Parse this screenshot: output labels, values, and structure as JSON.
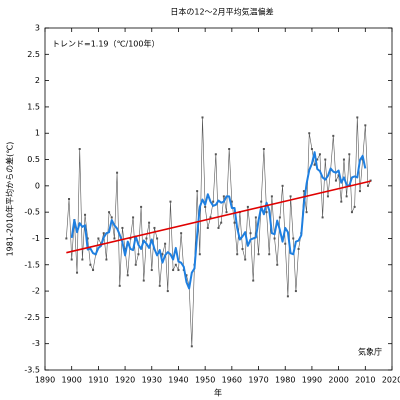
{
  "chart_data": {
    "type": "line",
    "title": "日本の12～2月平均気温偏差",
    "annotation": "トレンド=1.19（℃/100年）",
    "source": "気象庁",
    "xlabel": "年",
    "ylabel": "1981-2010年平均からの差(℃)",
    "xlim": [
      1890,
      2020
    ],
    "xticks": [
      1890,
      1900,
      1910,
      1920,
      1930,
      1940,
      1950,
      1960,
      1970,
      1980,
      1990,
      2000,
      2010,
      2020
    ],
    "ylim": [
      -3.5,
      3
    ],
    "yticks": [
      3,
      2.5,
      2,
      1.5,
      1,
      0.5,
      0,
      -0.5,
      -1,
      -1.5,
      -2,
      -2.5,
      -3,
      -3.5
    ],
    "x": [
      1898,
      1899,
      1900,
      1901,
      1902,
      1903,
      1904,
      1905,
      1906,
      1907,
      1908,
      1909,
      1910,
      1911,
      1912,
      1913,
      1914,
      1915,
      1916,
      1917,
      1918,
      1919,
      1920,
      1921,
      1922,
      1923,
      1924,
      1925,
      1926,
      1927,
      1928,
      1929,
      1930,
      1931,
      1932,
      1933,
      1934,
      1935,
      1936,
      1937,
      1938,
      1939,
      1940,
      1941,
      1942,
      1943,
      1944,
      1945,
      1946,
      1947,
      1948,
      1949,
      1950,
      1951,
      1952,
      1953,
      1954,
      1955,
      1956,
      1957,
      1958,
      1959,
      1960,
      1961,
      1962,
      1963,
      1964,
      1965,
      1966,
      1967,
      1968,
      1969,
      1970,
      1971,
      1972,
      1973,
      1974,
      1975,
      1976,
      1977,
      1978,
      1979,
      1980,
      1981,
      1982,
      1983,
      1984,
      1985,
      1986,
      1987,
      1988,
      1989,
      1990,
      1991,
      1992,
      1993,
      1994,
      1995,
      1996,
      1997,
      1998,
      1999,
      2000,
      2001,
      2002,
      2003,
      2004,
      2005,
      2006,
      2007,
      2008,
      2009,
      2010,
      2011,
      2012
    ],
    "series": [
      {
        "color": "#555555",
        "values": [
          -1.0,
          -0.25,
          -1.4,
          -0.65,
          -1.65,
          0.7,
          -1.4,
          -0.55,
          -1.0,
          -1.5,
          -1.6,
          -1.3,
          -1.0,
          -1.1,
          -0.9,
          -1.4,
          -0.5,
          -0.6,
          -1.0,
          0.25,
          -1.9,
          -0.8,
          -1.2,
          -1.7,
          -1.0,
          -0.6,
          -1.5,
          -1.3,
          -0.4,
          -1.8,
          -1.0,
          -0.7,
          -1.6,
          -0.8,
          -1.0,
          -1.9,
          -1.3,
          -1.1,
          -2.0,
          -0.3,
          -1.6,
          -1.5,
          -1.6,
          -0.9,
          -1.6,
          -1.7,
          -1.9,
          -3.05,
          -1.5,
          -0.1,
          -1.3,
          1.3,
          -0.4,
          -0.8,
          -0.6,
          -0.3,
          0.6,
          -0.8,
          -0.7,
          -0.2,
          -0.5,
          0.7,
          -0.3,
          -0.7,
          -1.3,
          -0.5,
          -1.2,
          -1.4,
          -0.4,
          -0.9,
          -1.8,
          -0.6,
          -1.3,
          -0.3,
          0.7,
          -0.5,
          -1.3,
          -0.2,
          -1.0,
          -1.5,
          -0.6,
          0.0,
          -1.1,
          -2.1,
          -0.2,
          -1.0,
          -2.0,
          -1.2,
          -0.9,
          -0.1,
          -0.5,
          1.0,
          0.7,
          0.4,
          0.5,
          0.6,
          -0.6,
          0.5,
          -0.2,
          0.3,
          0.95,
          0.1,
          0.2,
          -0.3,
          0.5,
          -0.2,
          0.6,
          -0.5,
          -0.4,
          1.3,
          -0.1,
          0.5,
          1.15,
          0.0,
          0.1
        ]
      },
      {
        "color": "#1e7fe0",
        "values": [
          null,
          null,
          -0.99,
          -0.65,
          -0.88,
          -0.71,
          -0.78,
          -0.75,
          -1.21,
          -1.19,
          -1.28,
          -1.3,
          -1.18,
          -1.14,
          -0.98,
          -0.9,
          -0.88,
          -0.65,
          -0.75,
          -0.81,
          -0.93,
          -1.07,
          -1.32,
          -1.06,
          -1.2,
          -1.22,
          -0.96,
          -1.12,
          -1.2,
          -1.04,
          -1.1,
          -1.18,
          -1.02,
          -1.2,
          -1.32,
          -1.22,
          -1.46,
          -1.32,
          -1.26,
          -1.3,
          -1.4,
          -1.18,
          -1.44,
          -1.46,
          -1.54,
          -1.83,
          -1.95,
          -1.65,
          -1.57,
          -0.93,
          -0.4,
          -0.26,
          -0.36,
          -0.16,
          -0.3,
          -0.38,
          -0.36,
          -0.28,
          -0.32,
          -0.3,
          -0.2,
          -0.2,
          -0.42,
          -0.42,
          -0.8,
          -1.02,
          -0.96,
          -0.88,
          -1.14,
          -1.02,
          -1.0,
          -0.98,
          -0.66,
          -0.4,
          -0.54,
          -0.32,
          -0.46,
          -0.9,
          -0.92,
          -0.66,
          -0.84,
          -1.06,
          -0.8,
          -0.88,
          -1.28,
          -1.3,
          -1.06,
          -1.04,
          -0.94,
          -0.34,
          0.04,
          0.3,
          0.42,
          0.64,
          0.32,
          0.28,
          0.16,
          0.12,
          0.19,
          0.33,
          0.27,
          0.25,
          0.29,
          0.06,
          0.16,
          0.02,
          0.0,
          0.16,
          0.18,
          0.16,
          0.49,
          0.57,
          0.33,
          null,
          null
        ]
      }
    ],
    "trend": {
      "color": "#e00000",
      "x": [
        1898,
        2012
      ],
      "values": [
        -1.27,
        0.09
      ]
    }
  }
}
